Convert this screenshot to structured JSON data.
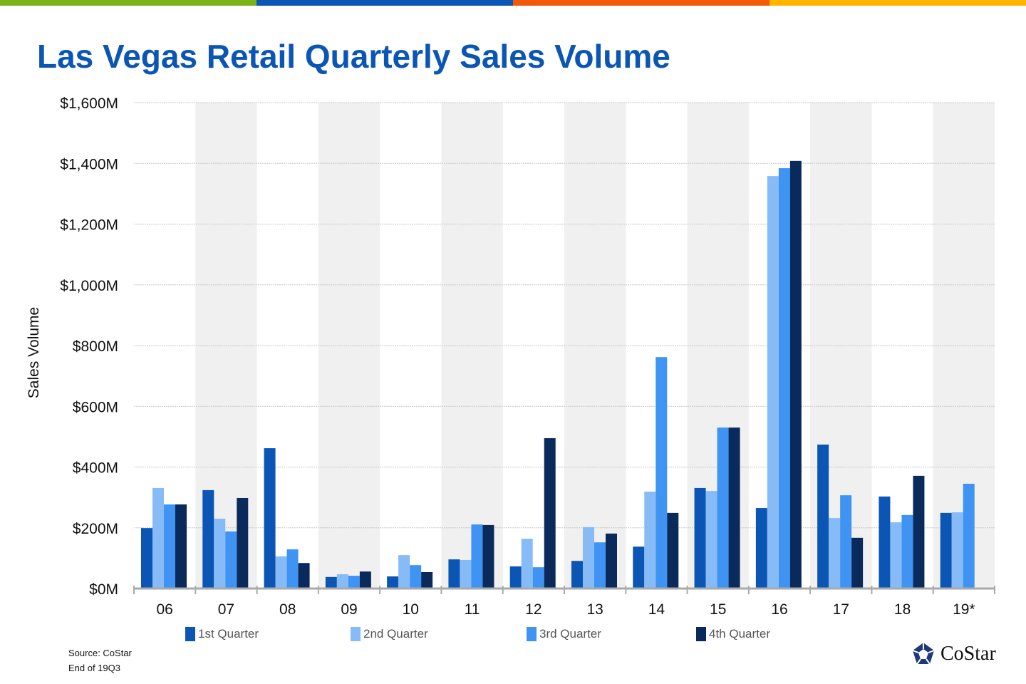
{
  "header": {
    "title": "Las Vegas Retail Quarterly Sales Volume",
    "stripe_colors": [
      "#7ab317",
      "#0b55b4",
      "#f05a0a",
      "#ffb400"
    ]
  },
  "footer": {
    "source": "Source: CoStar",
    "note": "End of 19Q3",
    "logo": "CoStar"
  },
  "chart_data": {
    "type": "bar",
    "title": "Las Vegas Retail Quarterly Sales Volume",
    "ylabel": "Sales Volume",
    "xlabel": "",
    "ylim": [
      0,
      1600
    ],
    "yticks": [
      "$0M",
      "$200M",
      "$400M",
      "$600M",
      "$800M",
      "$1,000M",
      "$1,200M",
      "$1,400M",
      "$1,600M"
    ],
    "categories": [
      "06",
      "07",
      "08",
      "09",
      "10",
      "11",
      "12",
      "13",
      "14",
      "15",
      "16",
      "17",
      "18",
      "19*"
    ],
    "grid": true,
    "legend": "bottom",
    "series": [
      {
        "name": "1st Quarter",
        "color": "#0b55b4",
        "values": [
          199,
          324,
          462,
          38,
          40,
          96,
          73,
          91,
          138,
          331,
          265,
          474,
          303,
          249
        ]
      },
      {
        "name": "2nd Quarter",
        "color": "#86bbf7",
        "values": [
          331,
          230,
          106,
          47,
          110,
          94,
          164,
          202,
          319,
          321,
          1358,
          232,
          218,
          251
        ]
      },
      {
        "name": "3rd Quarter",
        "color": "#3f93f2",
        "values": [
          277,
          188,
          129,
          42,
          77,
          211,
          70,
          152,
          762,
          530,
          1384,
          307,
          242,
          345
        ]
      },
      {
        "name": "4th Quarter",
        "color": "#0b2a5c",
        "values": [
          277,
          298,
          84,
          56,
          54,
          209,
          495,
          181,
          249,
          530,
          1408,
          167,
          371,
          null
        ]
      }
    ]
  }
}
